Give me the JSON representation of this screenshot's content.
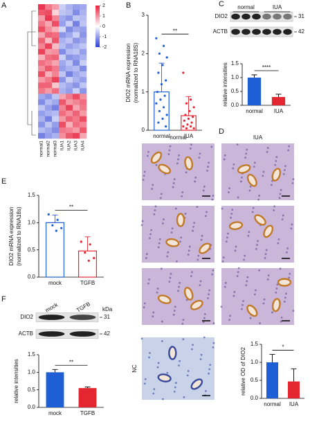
{
  "panel_letters": [
    "A",
    "B",
    "C",
    "D",
    "E",
    "F"
  ],
  "chart_data": [
    {
      "type": "heatmap",
      "panel": "A",
      "columns": [
        "normal1",
        "normal2",
        "normal3",
        "IUA1",
        "IUA2",
        "IUA3",
        "IUA4"
      ],
      "values": [
        [
          1.8,
          1.2,
          0.9,
          -0.5,
          -0.8,
          -1.0,
          -0.9
        ],
        [
          1.5,
          1.6,
          0.4,
          -0.6,
          -0.7,
          -1.2,
          -0.8
        ],
        [
          0.9,
          1.8,
          1.1,
          -0.9,
          -1.1,
          -0.6,
          -0.7
        ],
        [
          1.2,
          0.8,
          1.6,
          -1.0,
          -0.5,
          -1.3,
          -0.6
        ],
        [
          1.6,
          1.0,
          0.7,
          -0.4,
          -1.2,
          -0.9,
          -1.0
        ],
        [
          0.8,
          1.4,
          1.3,
          -1.1,
          -0.9,
          -0.5,
          -1.1
        ],
        [
          1.4,
          0.6,
          1.5,
          -0.8,
          -0.6,
          -1.1,
          -0.9
        ],
        [
          1.1,
          1.7,
          0.6,
          -0.7,
          -1.0,
          -0.8,
          -0.6
        ],
        [
          1.7,
          0.9,
          1.0,
          -1.2,
          -0.7,
          -0.6,
          -1.0
        ],
        [
          0.7,
          1.3,
          1.4,
          -0.5,
          -1.1,
          -1.0,
          -0.8
        ],
        [
          1.3,
          1.1,
          0.8,
          -0.9,
          -0.6,
          -1.2,
          -0.5
        ],
        [
          1.0,
          1.5,
          1.2,
          -1.0,
          -0.8,
          -0.7,
          -1.2
        ],
        [
          1.6,
          0.7,
          1.1,
          -0.6,
          -1.3,
          -0.9,
          -0.7
        ],
        [
          0.9,
          1.2,
          1.7,
          -1.1,
          -0.5,
          -0.8,
          -1.0
        ],
        [
          1.4,
          1.4,
          0.5,
          -0.7,
          -0.9,
          -1.1,
          -0.6
        ],
        [
          1.2,
          0.9,
          1.3,
          -0.8,
          -1.0,
          -0.5,
          -1.1
        ],
        [
          -0.9,
          -1.1,
          -0.6,
          0.8,
          1.2,
          1.6,
          1.0
        ],
        [
          -1.2,
          -0.7,
          -0.9,
          1.5,
          0.9,
          1.1,
          1.3
        ],
        [
          -0.6,
          -1.0,
          -1.3,
          1.1,
          1.7,
          0.8,
          1.2
        ],
        [
          -1.0,
          -0.8,
          -0.7,
          1.3,
          1.0,
          1.4,
          0.9
        ],
        [
          -0.8,
          -1.3,
          -0.5,
          0.9,
          1.4,
          1.2,
          1.6
        ],
        [
          -1.1,
          -0.6,
          -1.0,
          1.6,
          0.7,
          1.3,
          1.1
        ],
        [
          -0.7,
          -0.9,
          -1.2,
          1.2,
          1.1,
          0.9,
          1.5
        ],
        [
          -1.3,
          -1.0,
          -0.8,
          1.0,
          1.5,
          1.7,
          0.8
        ]
      ],
      "zlim": [
        -2,
        2
      ],
      "colorbar_ticks": [
        2,
        1,
        0,
        -1,
        -2
      ],
      "colormap": [
        "#2b3fd6",
        "#ffffff",
        "#e8203c"
      ]
    },
    {
      "type": "bar",
      "panel": "B",
      "y_label": [
        "DIO2 mRNA expression",
        "(normalized to RNA18S)"
      ],
      "categories": [
        "normal",
        "IUA"
      ],
      "values": [
        1.0,
        0.38
      ],
      "errors": [
        0.75,
        0.5
      ],
      "colors": [
        "#1f5fd6",
        "#e3262f"
      ],
      "filled": false,
      "points": [
        [
          2.4,
          2.2,
          2.0,
          1.9,
          1.7,
          1.5,
          1.3,
          1.2,
          1.0,
          0.9,
          0.8,
          0.7,
          0.6,
          0.5,
          0.4,
          0.3,
          0.2,
          0.1
        ],
        [
          1.5,
          0.8,
          0.7,
          0.6,
          0.5,
          0.4,
          0.35,
          0.3,
          0.25,
          0.2,
          0.15,
          0.1,
          0.1,
          0.05,
          0.05
        ]
      ],
      "ylim": [
        0,
        3
      ],
      "yticks": [
        0,
        1,
        2,
        3
      ],
      "significance": "**"
    },
    {
      "type": "bar",
      "panel": "C",
      "y_label": [
        "relative intensities"
      ],
      "categories": [
        "normal",
        "IUA"
      ],
      "values": [
        1.0,
        0.3
      ],
      "errors": [
        0.1,
        0.1
      ],
      "colors": [
        "#1f5fd6",
        "#e3262f"
      ],
      "filled": true,
      "ylim": [
        0,
        1.5
      ],
      "yticks": [
        {
          "value": 0,
          "label": "0.0"
        },
        0.5,
        {
          "value": 1,
          "label": "1.0"
        },
        1.5
      ],
      "significance": "****"
    },
    {
      "type": "bar",
      "panel": "D",
      "y_label": [
        "relative OD of DIO2"
      ],
      "categories": [
        "normal",
        "IUA"
      ],
      "values": [
        1.0,
        0.47
      ],
      "errors": [
        0.22,
        0.35
      ],
      "colors": [
        "#1f5fd6",
        "#e3262f"
      ],
      "filled": true,
      "ylim": [
        0,
        1.5
      ],
      "yticks": [
        {
          "value": 0,
          "label": "0.0"
        },
        0.5,
        {
          "value": 1,
          "label": "1.0"
        },
        1.5
      ],
      "significance": "*"
    },
    {
      "type": "bar",
      "panel": "E",
      "y_label": [
        "DIO2 mRNA expression",
        "(normalized to RNA18s)"
      ],
      "categories": [
        "mock",
        "TGFB"
      ],
      "values": [
        1.0,
        0.48
      ],
      "errors": [
        0.14,
        0.26
      ],
      "colors": [
        "#1f5fd6",
        "#e3262f"
      ],
      "filled": false,
      "points": [
        [
          1.15,
          1.05,
          0.95,
          0.9,
          0.85
        ],
        [
          0.65,
          0.6,
          0.45,
          0.35,
          0.3
        ]
      ],
      "ylim": [
        0,
        1.5
      ],
      "yticks": [
        {
          "value": 0,
          "label": "0.0"
        },
        0.5,
        {
          "value": 1,
          "label": "1.0"
        },
        1.5
      ],
      "significance": "**"
    },
    {
      "type": "bar",
      "panel": "F",
      "y_label": [
        "relative intensities"
      ],
      "categories": [
        "mock",
        "TGFB"
      ],
      "values": [
        1.0,
        0.55
      ],
      "errors": [
        0.08,
        0.03
      ],
      "colors": [
        "#1f5fd6",
        "#e3262f"
      ],
      "filled": true,
      "ylim": [
        0,
        1.5
      ],
      "yticks": [
        {
          "value": 0,
          "label": "0.0"
        },
        0.5,
        {
          "value": 1,
          "label": "1.0"
        },
        1.5
      ],
      "significance": "**"
    }
  ],
  "blots": [
    {
      "panel": "C",
      "lanes": [
        "normal",
        "IUA"
      ],
      "rows": [
        "DIO2",
        "ACTB"
      ],
      "markers": [
        "31",
        "42"
      ]
    },
    {
      "panel": "F",
      "lanes": [
        "mock",
        "TGFB"
      ],
      "rows": [
        "DIO2",
        "ACTB"
      ],
      "markers": [
        "31",
        "42"
      ],
      "unit": "kDa"
    }
  ],
  "micrographs": {
    "columns": [
      "normal",
      "IUA"
    ],
    "control_label": "NC"
  }
}
